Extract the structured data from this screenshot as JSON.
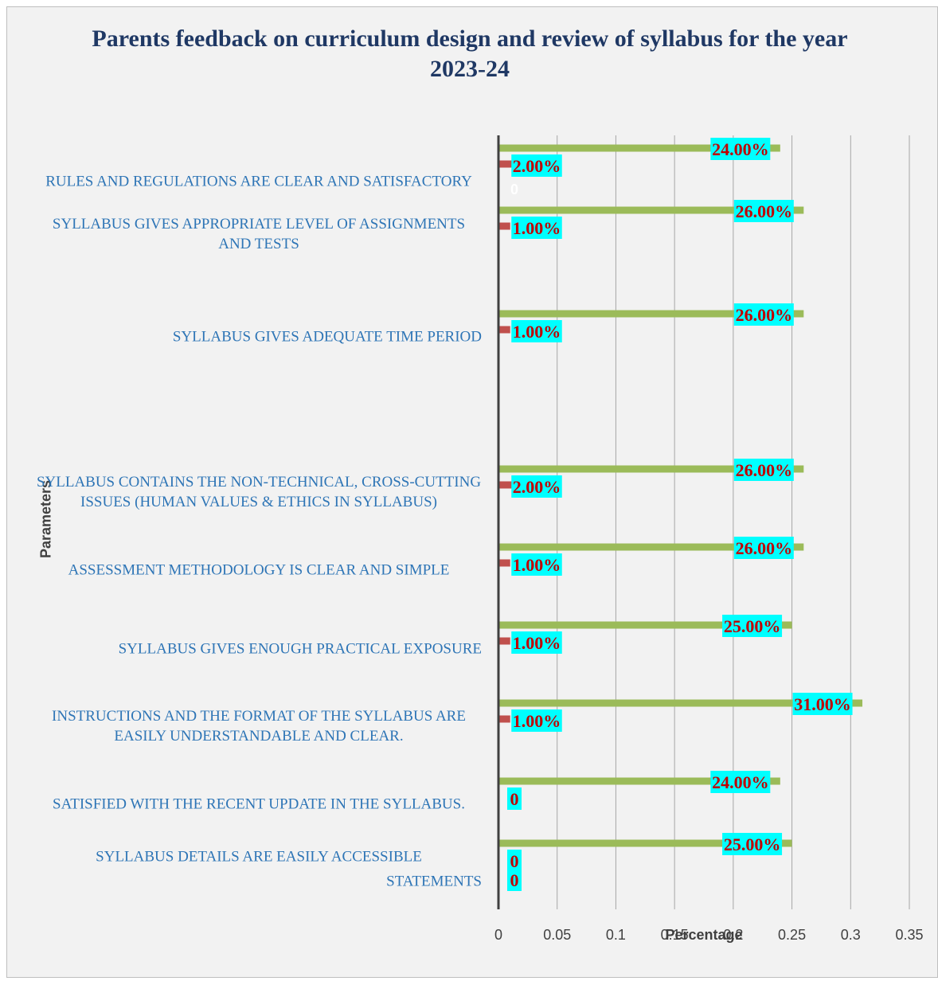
{
  "chart_data": {
    "type": "bar",
    "orientation": "horizontal",
    "title": "Parents feedback on curriculum design and review of syllabus for the year 2023-24",
    "xlabel": "Percentage",
    "ylabel": "Parameters",
    "xlim": [
      0,
      0.35
    ],
    "xticks": [
      "0",
      "0.05",
      "0.1",
      "0.15",
      "0.2",
      "0.25",
      "0.3",
      "0.35"
    ],
    "grid": "vertical",
    "categories": [
      "RULES AND REGULATIONS ARE CLEAR AND SATISFACTORY",
      "SYLLABUS GIVES APPROPRIATE LEVEL OF ASSIGNMENTS AND TESTS",
      "SYLLABUS GIVES ADEQUATE TIME PERIOD",
      "SYLLABUS CONTAINS THE NON-TECHNICAL, CROSS-CUTTING ISSUES (HUMAN VALUES & ETHICS IN SYLLABUS)",
      "ASSESSMENT METHODOLOGY IS CLEAR AND SIMPLE",
      "SYLLABUS GIVES ENOUGH PRACTICAL EXPOSURE",
      "INSTRUCTIONS AND THE FORMAT OF THE SYLLABUS ARE EASILY UNDERSTANDABLE AND CLEAR.",
      "SATISFIED WITH THE RECENT UPDATE IN THE SYLLABUS.",
      "SYLLABUS DETAILS ARE EASILY ACCESSIBLE",
      "STATEMENTS"
    ],
    "series": [
      {
        "color": "#9bbb59",
        "values": [
          0.24,
          0.26,
          0.26,
          0.26,
          0.26,
          0.25,
          0.31,
          0.24,
          0.25,
          null
        ],
        "labels": [
          "24.00%",
          "26.00%",
          "26.00%",
          "26.00%",
          "26.00%",
          "25.00%",
          "31.00%",
          "24.00%",
          "25.00%",
          ""
        ]
      },
      {
        "color": "#c0504d",
        "values": [
          0.02,
          0.01,
          0.01,
          0.02,
          0.01,
          0.01,
          0.01,
          0,
          0,
          0
        ],
        "labels": [
          "2.00%",
          "1.00%",
          "1.00%",
          "2.00%",
          "1.00%",
          "1.00%",
          "1.00%",
          "0",
          "0",
          "0"
        ]
      },
      {
        "color": "#ffffff",
        "values": [
          0,
          null,
          null,
          null,
          null,
          null,
          null,
          null,
          null,
          null
        ],
        "labels": [
          "0",
          "",
          "",
          "",
          "",
          "",
          "",
          "",
          "",
          ""
        ]
      }
    ],
    "label_background": "#00ffff"
  }
}
